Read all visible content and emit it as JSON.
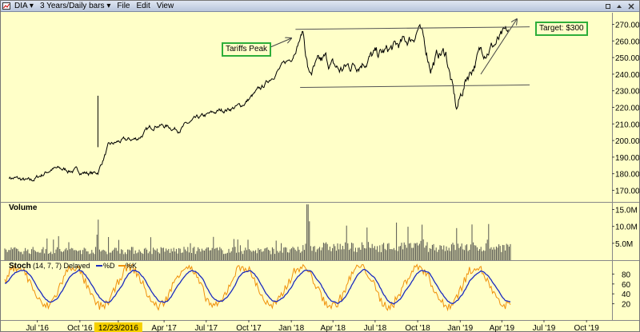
{
  "toolbar": {
    "symbol": "DIA",
    "period": "3 Years/Daily bars",
    "menu": [
      {
        "name": "menu-file",
        "label": "File"
      },
      {
        "name": "menu-edit",
        "label": "Edit"
      },
      {
        "name": "menu-view",
        "label": "View"
      }
    ]
  },
  "annotations": {
    "tariffs_peak": "Tariffs Peak",
    "target": "Target: $300"
  },
  "panels": {
    "volume_label": "Volume",
    "stoch_label": "Stoch",
    "stoch_params": "(14, 7, 7) Delayed",
    "stoch_legend": [
      "%D",
      "%K"
    ]
  },
  "chart_data": [
    {
      "type": "line",
      "series_kind": "price",
      "yticks": [
        "270.00",
        "260.00",
        "250.00",
        "240.00",
        "230.00",
        "220.00",
        "210.00",
        "200.00",
        "190.00",
        "180.00",
        "170.00"
      ],
      "ylim": [
        163,
        277
      ],
      "x": [
        "2016-05-01",
        "2016-06-15",
        "2016-08-01",
        "2016-09-15",
        "2016-10-31",
        "2016-11-09",
        "2016-12-01",
        "2016-12-23",
        "2017-02-01",
        "2017-03-15",
        "2017-05-01",
        "2017-06-15",
        "2017-08-01",
        "2017-09-15",
        "2017-10-31",
        "2017-12-01",
        "2018-01-02",
        "2018-01-26",
        "2018-02-08",
        "2018-03-15",
        "2018-04-15",
        "2018-05-15",
        "2018-06-15",
        "2018-07-15",
        "2018-08-15",
        "2018-09-20",
        "2018-10-03",
        "2018-10-29",
        "2018-11-15",
        "2018-12-01",
        "2018-12-24",
        "2019-01-15",
        "2019-02-15",
        "2019-03-15",
        "2019-04-15"
      ],
      "y": [
        178,
        175,
        183,
        182,
        180,
        181,
        196,
        199,
        201,
        210,
        207,
        213,
        218,
        221,
        232,
        242,
        250,
        266,
        240,
        248,
        242,
        246,
        250,
        252,
        256,
        262,
        269,
        245,
        252,
        253,
        218,
        238,
        254,
        258,
        264
      ],
      "reference_lines": [
        {
          "y_start": 267,
          "y_end": 268.5,
          "x_start": "2018-01-10",
          "x_end": "2019-05-31"
        },
        {
          "y_start": 232,
          "y_end": 233.5,
          "x_start": "2018-01-20",
          "x_end": "2019-05-31"
        }
      ],
      "xticks": [
        "Jul '16",
        "Oct '16",
        "12/23/2016",
        "Apr '17",
        "Jul '17",
        "Oct '17",
        "Jan '18",
        "Apr '18",
        "Jul '18",
        "Oct '18",
        "Jan '19",
        "Apr '19",
        "Jul '19",
        "Oct '19"
      ],
      "highlighted_xtick": "12/23/2016",
      "colors": {
        "price": "#000000",
        "trend": "#555555"
      }
    },
    {
      "type": "bar",
      "series_kind": "volume",
      "yticks": [
        "15.0M",
        "10.0M",
        "5.0M"
      ],
      "ylim": [
        0,
        17
      ],
      "typical_volume_m": 3.2,
      "spikes": [
        {
          "x": "2016-11-09",
          "y": 12
        },
        {
          "x": "2016-12-23",
          "y": 6
        },
        {
          "x": "2018-02-05",
          "y": 16.5
        },
        {
          "x": "2018-02-09",
          "y": 11.5
        },
        {
          "x": "2018-10-10",
          "y": 10.5
        },
        {
          "x": "2018-12-24",
          "y": 9.5
        }
      ],
      "colors": {
        "bar": "#555550"
      }
    },
    {
      "type": "line",
      "series_kind": "stochastic",
      "yticks": [
        "80",
        "60",
        "40",
        "20"
      ],
      "ylim": [
        0,
        100
      ],
      "series": [
        {
          "name": "%D",
          "color": "#1b2bbf"
        },
        {
          "name": "%K",
          "color": "#f0900a"
        }
      ]
    }
  ]
}
